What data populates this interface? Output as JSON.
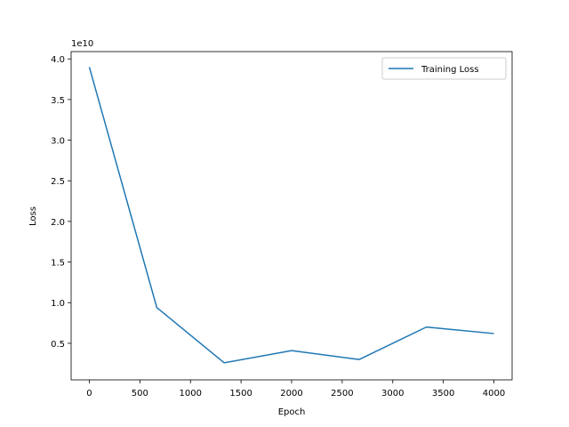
{
  "chart_data": {
    "type": "line",
    "xlabel": "Epoch",
    "ylabel": "Loss",
    "y_offset_text": "1e10",
    "y_multiplier": 10000000000,
    "xlim": [
      -180,
      4180
    ],
    "ylim": [
      0.05,
      4.09
    ],
    "x_ticks": [
      0,
      500,
      1000,
      1500,
      2000,
      2500,
      3000,
      3500,
      4000
    ],
    "y_ticks": [
      0.5,
      1.0,
      1.5,
      2.0,
      2.5,
      3.0,
      3.5,
      4.0
    ],
    "y_tick_labels": [
      "0.5",
      "1.0",
      "1.5",
      "2.0",
      "2.5",
      "3.0",
      "3.5",
      "4.0"
    ],
    "grid": false,
    "legend_position": "top-right",
    "series": [
      {
        "name": "Training Loss",
        "color": "#1f77b4",
        "x": [
          0,
          667,
          1333,
          2000,
          2667,
          3333,
          4000
        ],
        "y": [
          3.9,
          0.94,
          0.26,
          0.41,
          0.3,
          0.7,
          0.62
        ]
      }
    ]
  }
}
